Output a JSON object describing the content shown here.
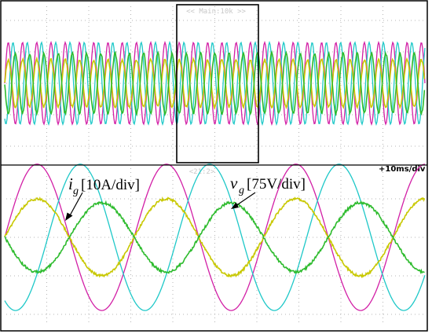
{
  "chart_data": {
    "type": "line",
    "title": "",
    "header": "<< Main:10k >>",
    "zoom_header": "<21:2>",
    "timebase": "+10ms/div",
    "colors": {
      "ig_a": "#2dbb2d",
      "ig_b": "#c8c800",
      "vg_a": "#d21fa6",
      "vg_b": "#1ec8c8",
      "frame": "#000000",
      "grid": "#b4b4b4"
    },
    "annotations": [
      {
        "symbol": "i",
        "subscript": "g",
        "scale": "[10A/div]"
      },
      {
        "symbol": "v",
        "subscript": "g",
        "scale": "[75V/div]"
      }
    ],
    "overview": {
      "time_divs": 10,
      "cycles_per_div": 2.95,
      "series": [
        {
          "symbol": "vg",
          "colorKey": "vg_a",
          "amplitude_div": 1.3,
          "phase_deg": 0
        },
        {
          "symbol": "vg",
          "colorKey": "vg_b",
          "amplitude_div": 1.3,
          "phase_deg": 120
        },
        {
          "symbol": "ig",
          "colorKey": "ig_b",
          "amplitude_div": 0.75,
          "phase_deg": 0
        },
        {
          "symbol": "ig",
          "colorKey": "ig_a",
          "amplitude_div": 0.95,
          "phase_deg": 180
        }
      ]
    },
    "zoom": {
      "time_divs": 10,
      "period_divs": 3.08,
      "series": [
        {
          "symbol": "vg",
          "colorKey": "vg_a",
          "amplitude_div": 1.9,
          "phase_deg": 0
        },
        {
          "symbol": "vg",
          "colorKey": "vg_b",
          "amplitude_div": 1.9,
          "phase_deg": 120
        },
        {
          "symbol": "ig",
          "colorKey": "ig_b",
          "amplitude_div": 1.0,
          "phase_deg": 0
        },
        {
          "symbol": "ig",
          "colorKey": "ig_a",
          "amplitude_div": 0.9,
          "phase_deg": 180
        }
      ]
    }
  }
}
